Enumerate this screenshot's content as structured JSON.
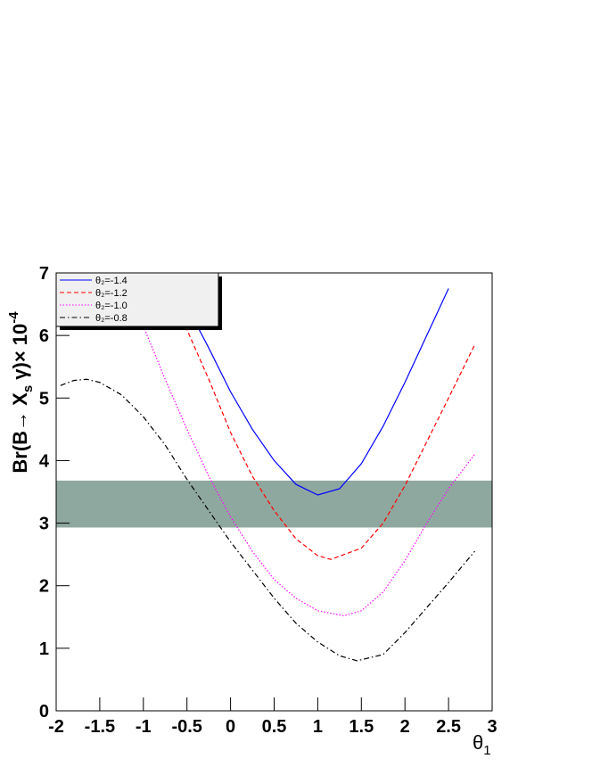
{
  "chart_data": {
    "type": "line",
    "xlabel": [
      "θ",
      "1"
    ],
    "ylabel": [
      "Br(B→ X",
      "s",
      " γ)× 10",
      "-4"
    ],
    "xlim": [
      -2,
      3
    ],
    "ylim": [
      0,
      7
    ],
    "xticks": [
      -2,
      -1.5,
      -1,
      -0.5,
      0,
      0.5,
      1,
      1.5,
      2,
      2.5,
      3
    ],
    "yticks": [
      0,
      1,
      2,
      3,
      4,
      5,
      6,
      7
    ],
    "band": [
      2.93,
      3.68
    ],
    "band_color": "#8fa89f",
    "legend": "top-left",
    "series": [
      {
        "name": "θ₂=-1.4",
        "color": "#0000ff",
        "dash": "none",
        "x": [
          -0.55,
          -0.25,
          0,
          0.25,
          0.5,
          0.75,
          1.0,
          1.25,
          1.5,
          1.75,
          2.0,
          2.25,
          2.5
        ],
        "values": [
          6.6,
          5.8,
          5.1,
          4.5,
          4.0,
          3.62,
          3.45,
          3.55,
          3.95,
          4.55,
          5.25,
          6.0,
          6.75
        ]
      },
      {
        "name": "θ₂=-1.2",
        "color": "#ff0000",
        "dash": "5,3",
        "x": [
          -0.55,
          -0.25,
          0,
          0.25,
          0.5,
          0.75,
          1.0,
          1.15,
          1.5,
          1.75,
          2.0,
          2.25,
          2.5,
          2.8
        ],
        "values": [
          6.25,
          5.3,
          4.45,
          3.75,
          3.2,
          2.75,
          2.48,
          2.42,
          2.6,
          3.0,
          3.6,
          4.3,
          5.0,
          5.85
        ]
      },
      {
        "name": "θ₂=-1.0",
        "color": "#ff00ff",
        "dash": "1.5,2",
        "x": [
          -1.0,
          -0.75,
          -0.5,
          -0.25,
          0,
          0.25,
          0.5,
          0.75,
          1.0,
          1.3,
          1.5,
          1.75,
          2.0,
          2.25,
          2.5,
          2.8
        ],
        "values": [
          6.15,
          5.3,
          4.5,
          3.75,
          3.1,
          2.55,
          2.1,
          1.8,
          1.6,
          1.52,
          1.6,
          1.9,
          2.4,
          3.0,
          3.55,
          4.1
        ]
      },
      {
        "name": "θ₂=-0.8",
        "color": "#000000",
        "dash": "6,3,1.5,3",
        "x": [
          -1.95,
          -1.8,
          -1.65,
          -1.5,
          -1.25,
          -1.0,
          -0.75,
          -0.5,
          -0.25,
          0,
          0.25,
          0.5,
          0.75,
          1.0,
          1.25,
          1.45,
          1.75,
          2.0,
          2.25,
          2.5,
          2.8
        ],
        "values": [
          5.2,
          5.28,
          5.3,
          5.25,
          5.05,
          4.7,
          4.25,
          3.7,
          3.2,
          2.7,
          2.25,
          1.8,
          1.4,
          1.1,
          0.88,
          0.8,
          0.9,
          1.25,
          1.65,
          2.05,
          2.55
        ]
      }
    ]
  }
}
